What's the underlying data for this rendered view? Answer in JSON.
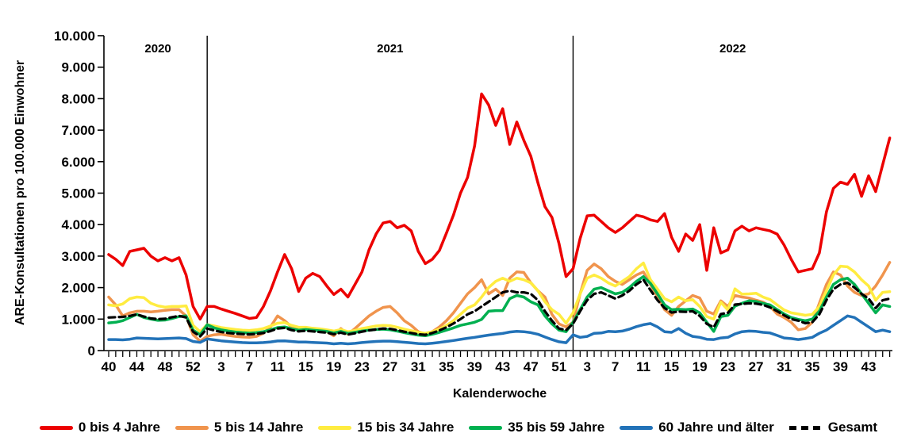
{
  "chart_data": {
    "type": "line",
    "title": "",
    "x_axis": {
      "title": "Kalenderwoche",
      "label_interval": 4,
      "years": [
        {
          "label": "2020",
          "week_start": 40,
          "week_end": 53,
          "first_label": 40
        },
        {
          "label": "2021",
          "week_start": 1,
          "week_end": 52,
          "first_label": 3
        },
        {
          "label": "2022",
          "week_start": 1,
          "week_end": 46,
          "first_label": 3
        }
      ]
    },
    "y_axis": {
      "title": "ARE-Konsultationen pro 100.000 Einwohner",
      "min": 0,
      "max": 10000,
      "step": 1000,
      "tick_labels": [
        "0",
        "1.000",
        "2.000",
        "3.000",
        "4.000",
        "5.000",
        "6.000",
        "7.000",
        "8.000",
        "9.000",
        "10.000"
      ]
    },
    "legend_position": "bottom",
    "grid": false,
    "series": [
      {
        "name": "0 bis 4 Jahre",
        "color": "#ec0000",
        "dash": false,
        "values": [
          3050,
          2900,
          2700,
          3150,
          3200,
          3250,
          3000,
          2850,
          2950,
          2850,
          2950,
          2400,
          1400,
          1000,
          1400,
          1400,
          1320,
          1250,
          1180,
          1100,
          1020,
          1050,
          1400,
          1900,
          2500,
          3050,
          2600,
          1880,
          2300,
          2450,
          2350,
          2050,
          1780,
          1950,
          1700,
          2100,
          2500,
          3200,
          3700,
          4050,
          4100,
          3900,
          3980,
          3800,
          3150,
          2760,
          2900,
          3180,
          3730,
          4300,
          5000,
          5500,
          6500,
          8150,
          7800,
          7150,
          7680,
          6550,
          7260,
          6680,
          6170,
          5330,
          4570,
          4230,
          3400,
          2350,
          2600,
          3560,
          4280,
          4300,
          4100,
          3900,
          3750,
          3900,
          4100,
          4300,
          4250,
          4150,
          4100,
          4350,
          3600,
          3150,
          3700,
          3500,
          4000,
          2550,
          3900,
          3100,
          3200,
          3800,
          3950,
          3800,
          3900,
          3850,
          3800,
          3700,
          3350,
          2900,
          2500,
          2550,
          2600,
          3100,
          4400,
          5150,
          5350,
          5280,
          5600,
          4900,
          5550,
          5050,
          5900,
          6750
        ]
      },
      {
        "name": "5 bis 14 Jahre",
        "color": "#f0944d",
        "dash": false,
        "values": [
          1700,
          1450,
          1100,
          1200,
          1250,
          1250,
          1230,
          1250,
          1280,
          1300,
          1300,
          1100,
          500,
          300,
          450,
          500,
          520,
          480,
          450,
          430,
          420,
          450,
          550,
          750,
          1100,
          950,
          750,
          650,
          700,
          680,
          650,
          600,
          470,
          700,
          520,
          700,
          900,
          1100,
          1250,
          1370,
          1400,
          1200,
          950,
          800,
          600,
          520,
          600,
          750,
          950,
          1200,
          1500,
          1800,
          2000,
          2250,
          1800,
          1950,
          1750,
          2300,
          2500,
          2480,
          2150,
          1900,
          1700,
          1150,
          850,
          750,
          900,
          1800,
          2550,
          2750,
          2600,
          2350,
          2200,
          2100,
          2250,
          2400,
          2500,
          2100,
          1700,
          1300,
          1120,
          1400,
          1580,
          1750,
          1670,
          1250,
          1160,
          1580,
          1400,
          1750,
          1700,
          1670,
          1600,
          1540,
          1400,
          1160,
          1050,
          900,
          660,
          700,
          900,
          1500,
          2100,
          2500,
          2400,
          2050,
          1850,
          1750,
          1800,
          2050,
          2400,
          2800
        ]
      },
      {
        "name": "15 bis 34 Jahre",
        "color": "#ffec40",
        "dash": false,
        "values": [
          1450,
          1420,
          1480,
          1650,
          1700,
          1680,
          1500,
          1420,
          1380,
          1400,
          1400,
          1420,
          800,
          600,
          825,
          780,
          730,
          700,
          670,
          650,
          640,
          660,
          700,
          780,
          870,
          890,
          800,
          740,
          740,
          710,
          690,
          660,
          620,
          670,
          600,
          640,
          700,
          740,
          780,
          800,
          790,
          740,
          680,
          630,
          580,
          550,
          600,
          680,
          800,
          950,
          1150,
          1350,
          1450,
          1700,
          2000,
          2200,
          2300,
          2200,
          2300,
          2250,
          2150,
          1900,
          1550,
          1300,
          1150,
          870,
          1200,
          1800,
          2300,
          2400,
          2300,
          2150,
          2050,
          2200,
          2350,
          2600,
          2780,
          2250,
          1950,
          1650,
          1550,
          1700,
          1580,
          1620,
          1400,
          1080,
          1000,
          1540,
          1290,
          1960,
          1790,
          1800,
          1820,
          1700,
          1620,
          1450,
          1290,
          1200,
          1160,
          1120,
          1150,
          1400,
          1900,
          2400,
          2680,
          2660,
          2500,
          2250,
          2050,
          1600,
          1850,
          1870
        ]
      },
      {
        "name": "35 bis 59 Jahre",
        "color": "#00b050",
        "dash": false,
        "values": [
          880,
          900,
          950,
          1050,
          1150,
          1050,
          1000,
          960,
          970,
          1020,
          1080,
          1100,
          650,
          500,
          820,
          720,
          660,
          620,
          590,
          570,
          555,
          570,
          600,
          660,
          730,
          750,
          690,
          650,
          670,
          650,
          630,
          610,
          560,
          610,
          550,
          580,
          620,
          650,
          670,
          680,
          660,
          620,
          570,
          530,
          490,
          470,
          520,
          580,
          650,
          720,
          800,
          850,
          900,
          990,
          1250,
          1270,
          1270,
          1650,
          1750,
          1700,
          1550,
          1450,
          1100,
          850,
          650,
          600,
          900,
          1300,
          1700,
          1950,
          2000,
          1900,
          1800,
          1850,
          2000,
          2200,
          2350,
          2130,
          1800,
          1450,
          1300,
          1310,
          1300,
          1320,
          1200,
          900,
          610,
          1080,
          1120,
          1410,
          1500,
          1580,
          1560,
          1500,
          1450,
          1300,
          1160,
          1050,
          990,
          950,
          1000,
          1250,
          1700,
          2100,
          2250,
          2300,
          2100,
          1800,
          1500,
          1200,
          1450,
          1400
        ]
      },
      {
        "name": "60 Jahre und älter",
        "color": "#2272b8",
        "dash": false,
        "values": [
          350,
          350,
          340,
          360,
          400,
          390,
          380,
          370,
          380,
          390,
          400,
          380,
          290,
          260,
          370,
          340,
          310,
          290,
          270,
          255,
          245,
          245,
          255,
          275,
          305,
          310,
          290,
          270,
          270,
          260,
          250,
          240,
          215,
          235,
          215,
          230,
          255,
          275,
          290,
          300,
          300,
          285,
          265,
          245,
          225,
          215,
          235,
          260,
          290,
          320,
          355,
          390,
          420,
          455,
          490,
          520,
          545,
          590,
          610,
          600,
          570,
          520,
          430,
          350,
          280,
          250,
          500,
          420,
          450,
          550,
          560,
          610,
          600,
          620,
          680,
          760,
          820,
          860,
          750,
          600,
          580,
          700,
          550,
          450,
          420,
          360,
          350,
          400,
          420,
          530,
          600,
          620,
          610,
          580,
          560,
          480,
          400,
          380,
          350,
          380,
          420,
          550,
          650,
          800,
          950,
          1100,
          1050,
          900,
          750,
          600,
          650,
          600
        ]
      },
      {
        "name": "Gesamt",
        "color": "#000000",
        "dash": true,
        "values": [
          1050,
          1060,
          1070,
          1100,
          1150,
          1080,
          1020,
          1000,
          1010,
          1060,
          1100,
          1050,
          600,
          450,
          700,
          640,
          590,
          560,
          540,
          525,
          515,
          530,
          560,
          620,
          700,
          720,
          650,
          610,
          630,
          610,
          590,
          570,
          520,
          570,
          510,
          550,
          600,
          640,
          670,
          700,
          690,
          650,
          600,
          560,
          520,
          500,
          560,
          640,
          740,
          860,
          1000,
          1150,
          1250,
          1400,
          1550,
          1700,
          1850,
          1900,
          1850,
          1850,
          1800,
          1600,
          1250,
          950,
          700,
          650,
          850,
          1250,
          1600,
          1800,
          1850,
          1750,
          1650,
          1750,
          1900,
          2100,
          2250,
          1920,
          1600,
          1350,
          1210,
          1240,
          1230,
          1250,
          1100,
          850,
          740,
          1160,
          1200,
          1460,
          1480,
          1500,
          1490,
          1450,
          1370,
          1250,
          1120,
          1000,
          950,
          870,
          900,
          1150,
          1600,
          1950,
          2100,
          2150,
          2000,
          1800,
          1650,
          1350,
          1600,
          1650
        ]
      }
    ]
  }
}
